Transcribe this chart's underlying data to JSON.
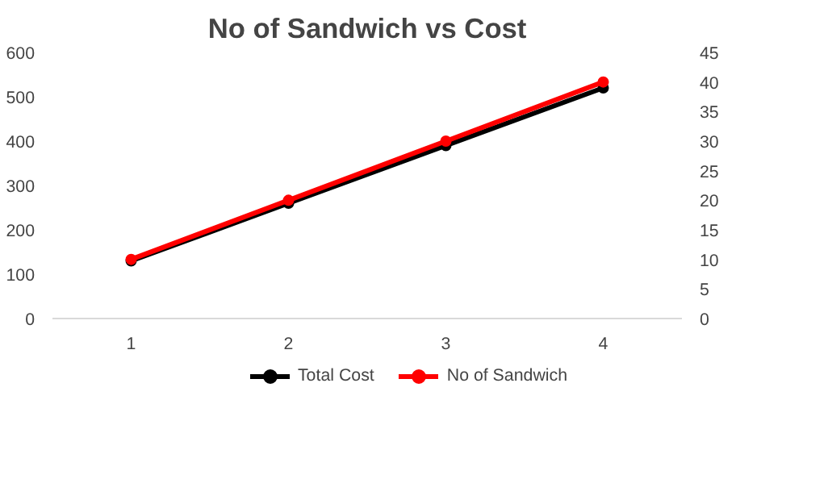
{
  "chart_data": {
    "type": "line",
    "title": "No of Sandwich vs Cost",
    "categories": [
      "1",
      "2",
      "3",
      "4"
    ],
    "series": [
      {
        "name": "Total Cost",
        "color": "#000000",
        "values": [
          130,
          260,
          390,
          520
        ]
      },
      {
        "name": "No of Sandwich",
        "color": "#ff0000",
        "values": [
          10,
          20,
          30,
          40
        ],
        "axis": "y2"
      }
    ],
    "ylim": [
      0,
      600
    ],
    "yticks": [
      0,
      100,
      200,
      300,
      400,
      500,
      600
    ],
    "y2lim": [
      0,
      45
    ],
    "y2ticks": [
      0,
      5,
      10,
      15,
      20,
      25,
      30,
      35,
      40,
      45
    ],
    "grid": false,
    "legend": "bottom",
    "marker": "circle",
    "line_style": "solid"
  }
}
